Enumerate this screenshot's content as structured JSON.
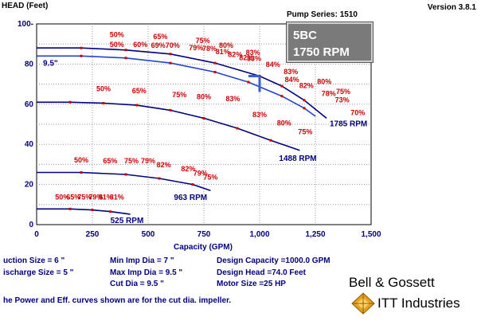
{
  "header": {
    "y_axis_title": "HEAD (Feet)",
    "pump_series": "Pump Series: 1510",
    "version": "Version 3.8.1"
  },
  "model_box": {
    "model": "5BC",
    "speed": "1750 RPM"
  },
  "colors": {
    "curve": "#000080",
    "efficiency": "#cc0000",
    "operating_point": "#3a5fcd",
    "model_box_bg": "#7a7a7a"
  },
  "chart_data": {
    "type": "line",
    "xlabel": "Capacity (GPM)",
    "ylabel": "HEAD (Feet)",
    "xlim": [
      0,
      1500
    ],
    "ylim": [
      0,
      100
    ],
    "x_ticks": [
      "0",
      "250",
      "500",
      "750",
      "1,000",
      "1,250",
      "1,500"
    ],
    "y_ticks": [
      "0",
      "20",
      "40",
      "60",
      "80",
      "100"
    ],
    "grid": true,
    "series": [
      {
        "name": "9.5\"",
        "x": [
          0,
          200,
          400,
          600,
          800,
          950,
          1100,
          1200,
          1250
        ],
        "y": [
          84,
          84,
          83,
          80.5,
          76,
          71,
          64,
          58,
          54
        ]
      },
      {
        "name": "1785 RPM",
        "x": [
          0,
          200,
          400,
          600,
          800,
          1000,
          1100,
          1200,
          1300
        ],
        "y": [
          88,
          88,
          87,
          85,
          80.5,
          74,
          69,
          62,
          53
        ]
      },
      {
        "name": "1488 RPM",
        "x": [
          0,
          150,
          300,
          450,
          600,
          750,
          900,
          1050,
          1180
        ],
        "y": [
          61,
          61,
          60.5,
          59.5,
          57,
          53,
          48,
          42,
          37
        ]
      },
      {
        "name": "963 RPM",
        "x": [
          0,
          200,
          400,
          550,
          700,
          780
        ],
        "y": [
          26,
          26,
          25,
          23,
          20,
          17
        ]
      },
      {
        "name": "525 RPM",
        "x": [
          0,
          150,
          250,
          330,
          420
        ],
        "y": [
          7.8,
          7.8,
          7.3,
          6.5,
          5.2
        ]
      }
    ],
    "efficiency_labels": [
      {
        "text": "50%",
        "x": 360,
        "y": 93.5
      },
      {
        "text": "65%",
        "x": 555,
        "y": 92.5
      },
      {
        "text": "75%",
        "x": 745,
        "y": 90.5
      },
      {
        "text": "80%",
        "x": 850,
        "y": 88
      },
      {
        "text": "83%",
        "x": 970,
        "y": 84.5
      },
      {
        "text": "84%",
        "x": 1060,
        "y": 78.5
      },
      {
        "text": "83%",
        "x": 1140,
        "y": 75
      },
      {
        "text": "80%",
        "x": 1290,
        "y": 70
      },
      {
        "text": "75%",
        "x": 1375,
        "y": 65
      },
      {
        "text": "70%",
        "x": 1440,
        "y": 54.5
      },
      {
        "text": "50%",
        "x": 360,
        "y": 88.5
      },
      {
        "text": "60%",
        "x": 465,
        "y": 88.5
      },
      {
        "text": "69%",
        "x": 545,
        "y": 88
      },
      {
        "text": "70%",
        "x": 610,
        "y": 88
      },
      {
        "text": "79%",
        "x": 715,
        "y": 87
      },
      {
        "text": "78%",
        "x": 775,
        "y": 86.5
      },
      {
        "text": "81%",
        "x": 835,
        "y": 85
      },
      {
        "text": "82%",
        "x": 890,
        "y": 83.5
      },
      {
        "text": "82%",
        "x": 940,
        "y": 82
      },
      {
        "text": "83%",
        "x": 975,
        "y": 81.5
      },
      {
        "text": "84%",
        "x": 1145,
        "y": 71
      },
      {
        "text": "82%",
        "x": 1210,
        "y": 68
      },
      {
        "text": "78%",
        "x": 1310,
        "y": 64
      },
      {
        "text": "73%",
        "x": 1370,
        "y": 61
      },
      {
        "text": "50%",
        "x": 300,
        "y": 66.5
      },
      {
        "text": "65%",
        "x": 460,
        "y": 65.5
      },
      {
        "text": "75%",
        "x": 640,
        "y": 63.5
      },
      {
        "text": "80%",
        "x": 750,
        "y": 62.5
      },
      {
        "text": "83%",
        "x": 880,
        "y": 61.5
      },
      {
        "text": "83%",
        "x": 1000,
        "y": 53.5
      },
      {
        "text": "80%",
        "x": 1110,
        "y": 49.5
      },
      {
        "text": "75%",
        "x": 1205,
        "y": 45
      },
      {
        "text": "50%",
        "x": 200,
        "y": 31
      },
      {
        "text": "65%",
        "x": 330,
        "y": 30.5
      },
      {
        "text": "75%",
        "x": 425,
        "y": 30.5
      },
      {
        "text": "79%",
        "x": 500,
        "y": 30.5
      },
      {
        "text": "82%",
        "x": 570,
        "y": 28.5
      },
      {
        "text": "82%",
        "x": 680,
        "y": 26.5
      },
      {
        "text": "79%",
        "x": 735,
        "y": 24.5
      },
      {
        "text": "75%",
        "x": 780,
        "y": 22.5
      },
      {
        "text": "50%",
        "x": 115,
        "y": 12.5
      },
      {
        "text": "65%",
        "x": 165,
        "y": 12.5
      },
      {
        "text": "75%",
        "x": 215,
        "y": 12.5
      },
      {
        "text": "79%",
        "x": 265,
        "y": 12.5
      },
      {
        "text": "81%",
        "x": 310,
        "y": 12.5
      },
      {
        "text": "81%",
        "x": 360,
        "y": 12.5
      }
    ],
    "design_point": {
      "x": 1000,
      "y": 74
    }
  },
  "specs": {
    "suction_size": "uction Size = 6 \"",
    "discharge_size": "ischarge Size = 5 \"",
    "min_imp_dia": "Min Imp Dia = 7 \"",
    "max_imp_dia": "Max Imp Dia = 9.5 \"",
    "cut_dia": "Cut Dia = 9.5 \"",
    "design_capacity": "Design Capacity =1000.0 GPM",
    "design_head": "Design Head =74.0 Feet",
    "motor_size": "Motor Size =25 HP"
  },
  "footer": {
    "note": "he Power and Eff. curves shown are for the cut dia. impeller.",
    "brand": "Bell & Gossett",
    "company": "ITT Industries"
  }
}
